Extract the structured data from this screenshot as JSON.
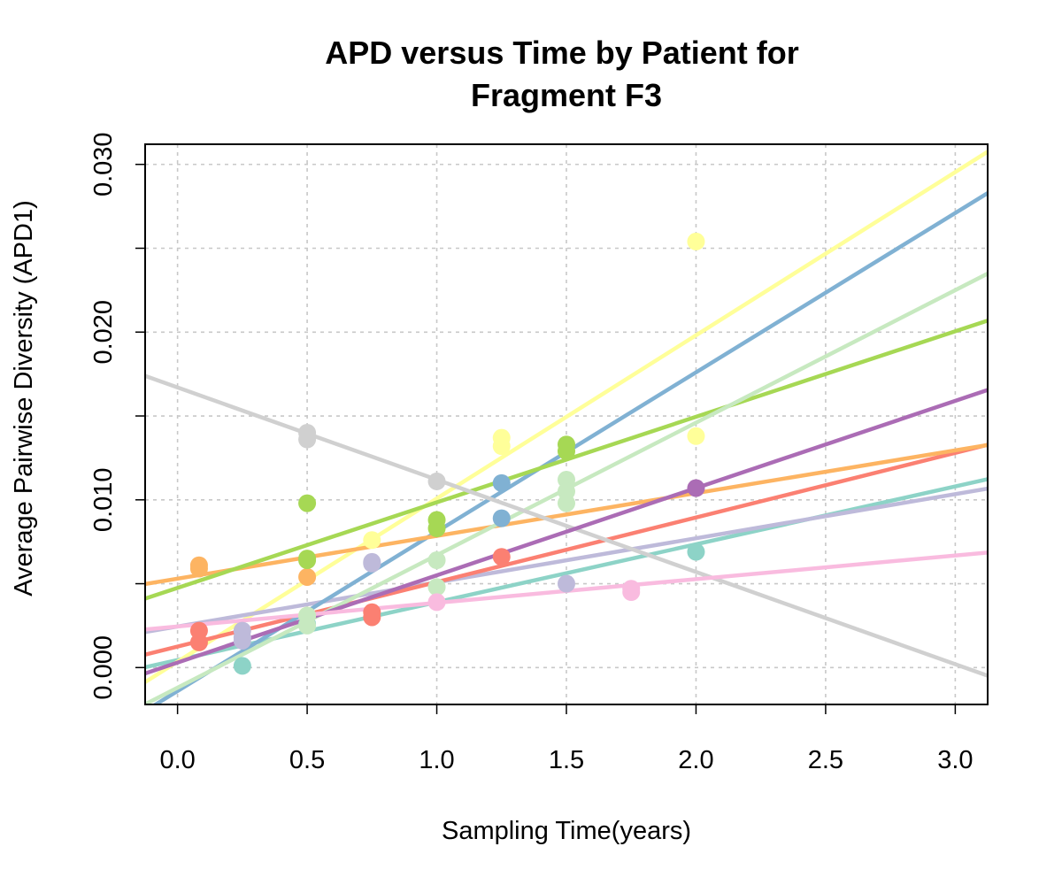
{
  "chart_data": {
    "type": "scatter",
    "title": [
      "APD versus Time by Patient for",
      "Fragment F3"
    ],
    "xlabel": "Sampling Time(years)",
    "ylabel": "Average Pairwise Diversity (APD1)",
    "xlim": [
      -0.125,
      3.125
    ],
    "ylim": [
      -0.0022,
      0.0312
    ],
    "xticks": [
      0.0,
      0.5,
      1.0,
      1.5,
      2.0,
      2.5,
      3.0
    ],
    "xtick_labels": [
      "0.0",
      "0.5",
      "1.0",
      "1.5",
      "2.0",
      "2.5",
      "3.0"
    ],
    "yticks": [
      0.0,
      0.005,
      0.01,
      0.015,
      0.02,
      0.025,
      0.03
    ],
    "ytick_labels": [
      "0.000",
      "",
      "0.010",
      "",
      "0.020",
      "",
      "0.030"
    ],
    "grid": true,
    "series": [
      {
        "color": "#8DD3C7",
        "line": [
          0.00045,
          0.00345
        ],
        "points": [
          [
            0.25,
            0.0001
          ],
          [
            0.5,
            0.0026
          ],
          [
            2.0,
            0.0069
          ]
        ]
      },
      {
        "color": "#FFFF99",
        "line": [
          0.00035,
          0.00973
        ],
        "points": [
          [
            0.5,
            0.0031
          ],
          [
            0.75,
            0.0076
          ],
          [
            1.25,
            0.0137
          ],
          [
            1.25,
            0.0132
          ],
          [
            2.0,
            0.0254
          ],
          [
            2.0,
            0.0138
          ]
        ]
      },
      {
        "color": "#BEBADA",
        "line": [
          0.00245,
          0.00263
        ],
        "points": [
          [
            0.25,
            0.0018
          ],
          [
            0.25,
            0.0022
          ],
          [
            0.25,
            0.0016
          ],
          [
            0.75,
            0.0063
          ],
          [
            0.75,
            0.0062
          ],
          [
            1.5,
            0.005
          ]
        ]
      },
      {
        "color": "#FB8072",
        "line": [
          0.00125,
          0.00385
        ],
        "points": [
          [
            0.083,
            0.0022
          ],
          [
            0.083,
            0.0015
          ],
          [
            0.75,
            0.0033
          ],
          [
            0.75,
            0.003
          ],
          [
            1.25,
            0.0066
          ]
        ]
      },
      {
        "color": "#80B1D3",
        "line": [
          -0.0014,
          0.0095
        ],
        "points": [
          [
            1.25,
            0.011
          ],
          [
            1.25,
            0.0089
          ]
        ]
      },
      {
        "color": "#FDB462",
        "line": [
          0.0053,
          0.00255
        ],
        "points": [
          [
            0.083,
            0.0061
          ],
          [
            0.083,
            0.0059
          ],
          [
            0.5,
            0.0054
          ]
        ]
      },
      {
        "color": "#A6D854",
        "line": [
          0.00475,
          0.0051
        ],
        "points": [
          [
            0.5,
            0.0098
          ],
          [
            0.5,
            0.0065
          ],
          [
            0.5,
            0.0064
          ],
          [
            1.0,
            0.0088
          ],
          [
            1.0,
            0.0083
          ],
          [
            1.5,
            0.0133
          ],
          [
            1.5,
            0.0129
          ]
        ]
      },
      {
        "color": "#C7E9C0",
        "line": [
          -0.0012,
          0.0079
        ],
        "points": [
          [
            0.5,
            0.0031
          ],
          [
            0.5,
            0.0025
          ],
          [
            1.0,
            0.0064
          ],
          [
            1.0,
            0.0048
          ],
          [
            1.5,
            0.0112
          ],
          [
            1.5,
            0.0105
          ],
          [
            1.5,
            0.0098
          ]
        ]
      },
      {
        "color": "#D0D0D0",
        "line": [
          0.0167,
          -0.0055
        ],
        "points": [
          [
            0.5,
            0.014
          ],
          [
            0.5,
            0.0136
          ],
          [
            1.0,
            0.0111
          ]
        ]
      },
      {
        "color": "#AB6CB5",
        "line": [
          0.0003,
          0.0052
        ],
        "points": [
          [
            2.0,
            0.0107
          ]
        ]
      },
      {
        "color": "#F9BBDF",
        "line": [
          0.00245,
          0.00141
        ],
        "points": [
          [
            1.0,
            0.0039
          ],
          [
            1.75,
            0.0047
          ],
          [
            1.75,
            0.0045
          ]
        ]
      }
    ]
  }
}
